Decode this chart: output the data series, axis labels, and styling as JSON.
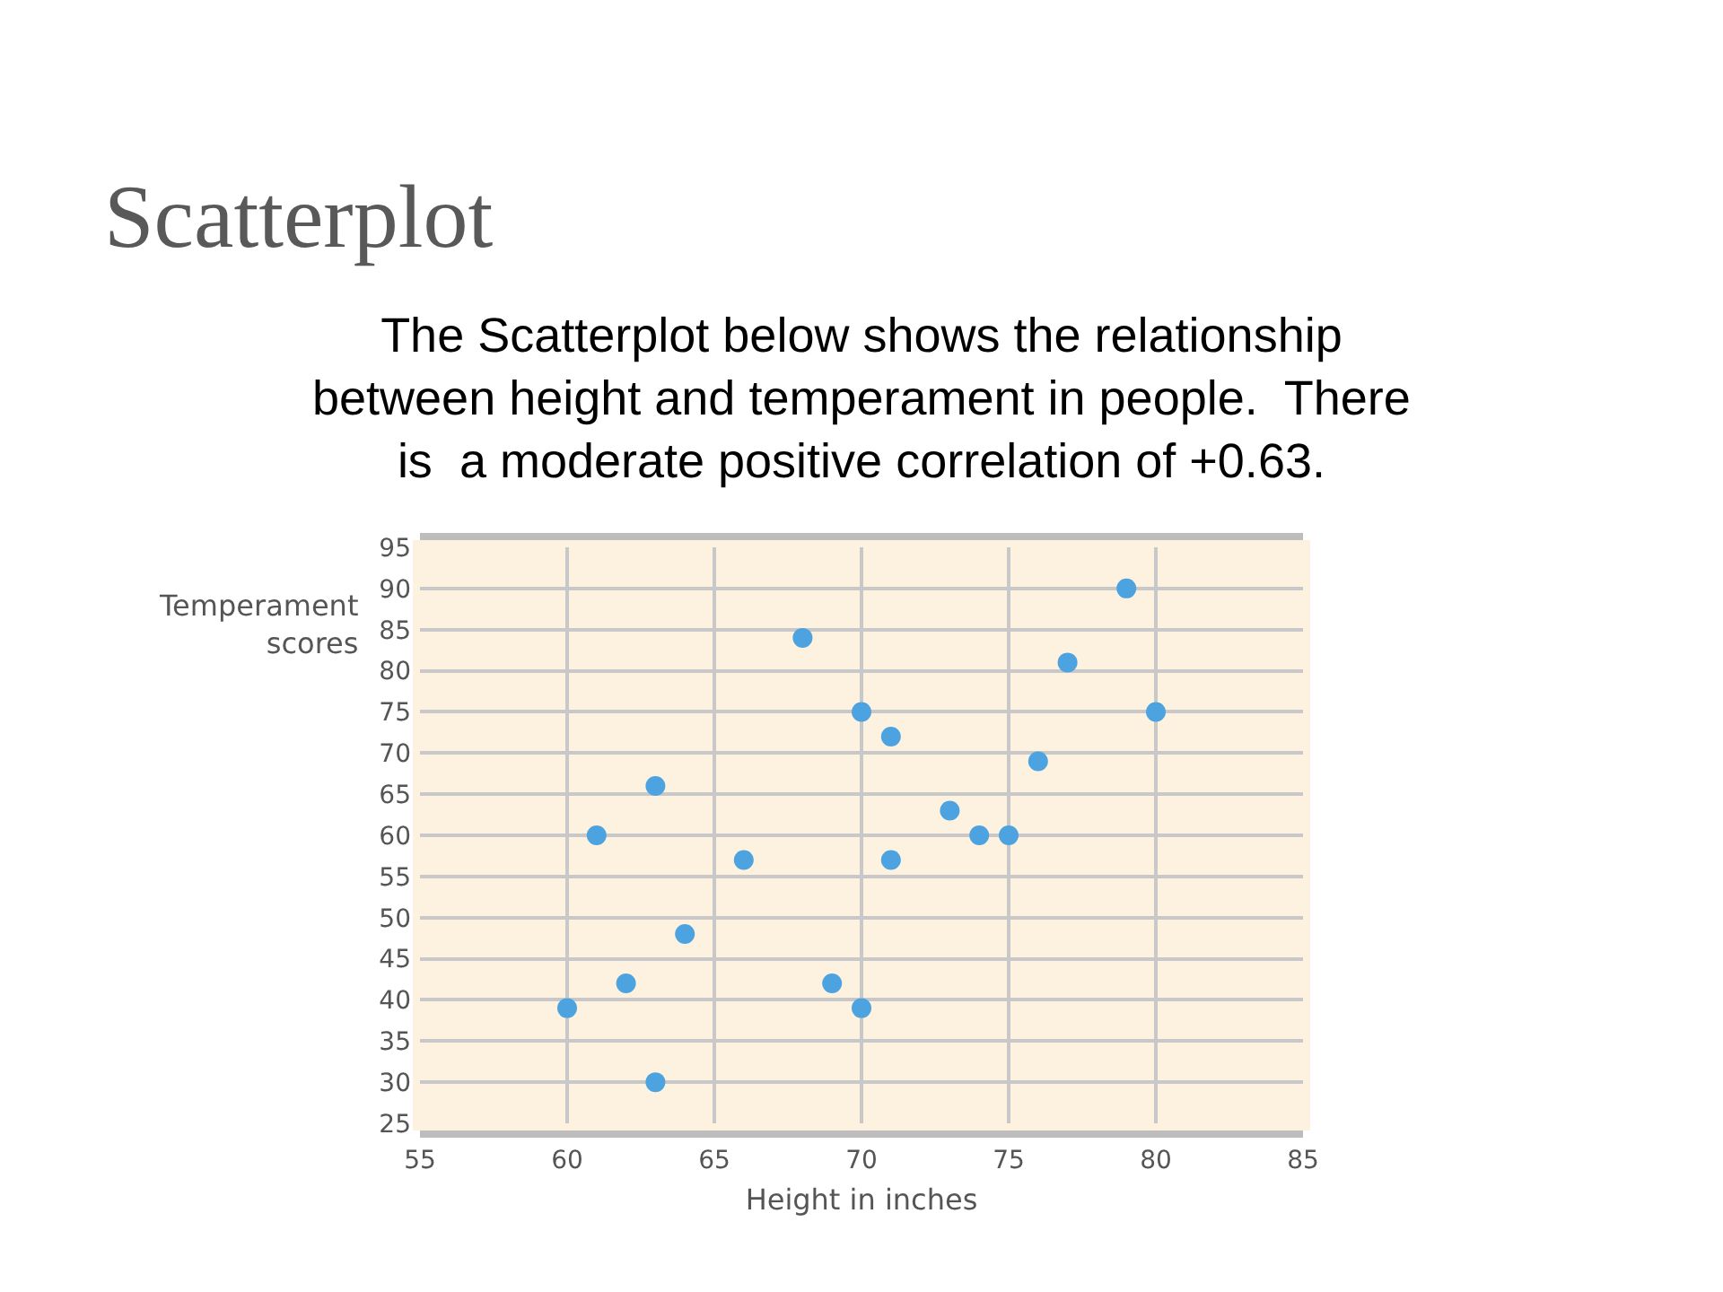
{
  "chart_data": {
    "type": "scatter",
    "title": "Scatterplot",
    "subtitle": "The Scatterplot below shows the relationship\nbetween height and temperament in people.  There\nis  a moderate positive correlation of +0.63.",
    "xlabel": "Height in inches",
    "ylabel": "Temperament\nscores",
    "x": [
      60,
      61,
      62,
      63,
      63,
      64,
      66,
      68,
      69,
      70,
      70,
      71,
      71,
      73,
      74,
      75,
      76,
      77,
      79,
      80
    ],
    "values": [
      39,
      60,
      42,
      66,
      30,
      48,
      57,
      84,
      42,
      39,
      75,
      72,
      57,
      63,
      60,
      60,
      69,
      81,
      90,
      75
    ],
    "color": "#4da3e0",
    "marker": "circle",
    "xlim": [
      55,
      85
    ],
    "xticks": [
      55,
      60,
      65,
      70,
      75,
      80,
      85
    ],
    "ylim": [
      25,
      95
    ],
    "yticks": [
      25,
      30,
      35,
      40,
      45,
      50,
      55,
      60,
      65,
      70,
      75,
      80,
      85,
      90,
      95
    ],
    "grid": true
  }
}
